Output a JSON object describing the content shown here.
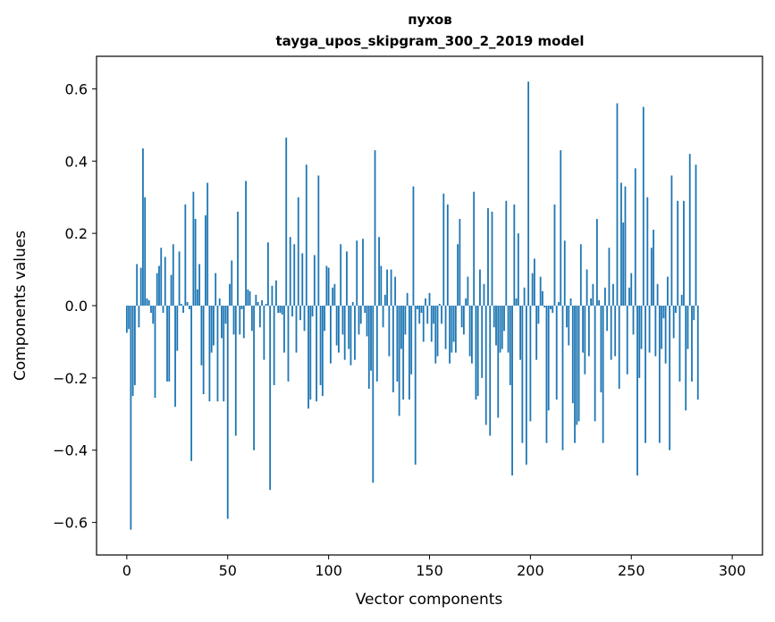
{
  "chart_data": {
    "type": "bar",
    "title": "пухов",
    "subtitle": "tayga_upos_skipgram_300_2_2019 model",
    "xlabel": "Vector components",
    "ylabel": "Components values",
    "xlim": [
      -15,
      315
    ],
    "ylim": [
      -0.69,
      0.69
    ],
    "x_ticks": [
      0,
      50,
      100,
      150,
      200,
      250,
      300
    ],
    "x_tick_labels": [
      "0",
      "50",
      "100",
      "150",
      "200",
      "250",
      "300"
    ],
    "y_ticks": [
      -0.6,
      -0.4,
      -0.2,
      0.0,
      0.2,
      0.4,
      0.6
    ],
    "y_tick_labels": [
      "−0.6",
      "−0.4",
      "−0.2",
      "0.0",
      "0.2",
      "0.4",
      "0.6"
    ],
    "grid": false,
    "bar_color": "#1f77b4",
    "values": [
      -0.075,
      -0.065,
      -0.62,
      -0.25,
      -0.22,
      0.115,
      -0.06,
      0.105,
      0.435,
      0.3,
      0.02,
      0.015,
      -0.02,
      -0.05,
      -0.255,
      0.09,
      0.11,
      0.16,
      -0.02,
      0.135,
      -0.21,
      -0.21,
      0.085,
      0.17,
      -0.28,
      -0.125,
      0.15,
      0.005,
      -0.02,
      0.28,
      0.01,
      -0.01,
      -0.43,
      0.315,
      0.24,
      0.045,
      0.115,
      -0.165,
      -0.245,
      0.25,
      0.34,
      -0.265,
      -0.13,
      -0.11,
      0.09,
      -0.265,
      0.02,
      -0.09,
      -0.265,
      -0.05,
      -0.59,
      0.06,
      0.125,
      -0.08,
      -0.36,
      0.26,
      -0.08,
      -0.01,
      -0.09,
      0.345,
      0.045,
      0.04,
      -0.07,
      -0.4,
      0.03,
      0.01,
      -0.06,
      0.015,
      -0.15,
      0.005,
      0.175,
      -0.51,
      0.055,
      -0.22,
      0.07,
      -0.02,
      -0.02,
      -0.025,
      -0.13,
      0.465,
      -0.21,
      0.19,
      -0.03,
      0.17,
      -0.13,
      0.3,
      -0.04,
      0.145,
      -0.07,
      0.39,
      -0.285,
      -0.26,
      -0.03,
      0.14,
      -0.265,
      0.36,
      -0.22,
      -0.25,
      -0.07,
      0.11,
      0.105,
      -0.16,
      0.05,
      0.06,
      -0.11,
      -0.13,
      0.17,
      -0.08,
      -0.15,
      0.15,
      -0.12,
      -0.165,
      0.01,
      -0.15,
      0.18,
      -0.08,
      -0.05,
      0.185,
      -0.02,
      -0.085,
      -0.23,
      -0.18,
      -0.49,
      0.43,
      -0.21,
      0.19,
      0.11,
      -0.06,
      0.03,
      0.1,
      -0.14,
      0.1,
      -0.24,
      0.08,
      -0.21,
      -0.305,
      -0.12,
      -0.26,
      -0.08,
      0.035,
      -0.26,
      -0.19,
      0.33,
      -0.44,
      -0.01,
      -0.05,
      -0.02,
      -0.1,
      0.02,
      -0.05,
      0.035,
      -0.1,
      -0.05,
      -0.16,
      -0.14,
      0.005,
      -0.05,
      0.31,
      -0.12,
      0.28,
      -0.16,
      -0.13,
      -0.1,
      -0.13,
      0.17,
      0.24,
      -0.06,
      -0.08,
      0.02,
      0.08,
      -0.14,
      -0.16,
      0.315,
      -0.26,
      -0.25,
      0.1,
      -0.2,
      0.06,
      -0.33,
      0.27,
      -0.36,
      0.26,
      -0.06,
      -0.11,
      -0.31,
      -0.13,
      -0.12,
      -0.07,
      0.29,
      -0.13,
      -0.22,
      -0.47,
      0.28,
      0.02,
      0.2,
      -0.15,
      -0.38,
      0.05,
      -0.44,
      0.62,
      -0.32,
      0.09,
      0.13,
      -0.15,
      -0.05,
      0.08,
      0.04,
      -0.005,
      -0.38,
      -0.29,
      -0.01,
      -0.02,
      0.28,
      -0.26,
      0.01,
      0.43,
      -0.4,
      0.18,
      -0.06,
      -0.11,
      0.02,
      -0.27,
      -0.38,
      -0.33,
      -0.32,
      0.17,
      -0.13,
      -0.19,
      0.1,
      -0.14,
      0.02,
      0.06,
      -0.32,
      0.24,
      0.015,
      -0.24,
      -0.38,
      0.05,
      -0.07,
      0.16,
      -0.15,
      0.06,
      -0.14,
      0.56,
      -0.23,
      0.34,
      0.23,
      0.33,
      -0.19,
      0.05,
      0.09,
      -0.08,
      0.38,
      -0.47,
      -0.2,
      -0.12,
      0.55,
      -0.38,
      0.3,
      -0.13,
      0.16,
      0.21,
      -0.14,
      0.06,
      -0.38,
      -0.12,
      -0.035,
      -0.16,
      0.08,
      -0.4,
      0.36,
      -0.09,
      -0.02,
      0.29,
      -0.21,
      0.03,
      0.29,
      -0.29,
      -0.12,
      0.42,
      -0.21,
      -0.04,
      0.39,
      -0.26
    ]
  }
}
